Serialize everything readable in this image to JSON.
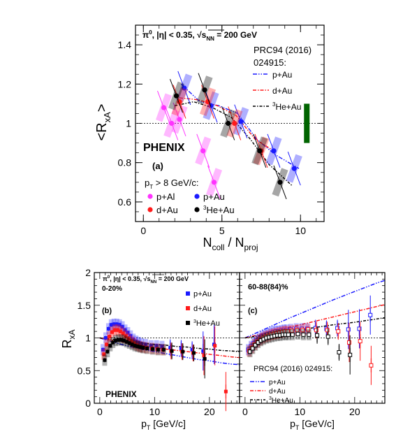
{
  "colors": {
    "pAl": "#ff33ff",
    "pAu": "#1a1aff",
    "dAu": "#ff1a1a",
    "He3Au": "#000000",
    "syst_green": "#006400"
  },
  "chart_data": [
    {
      "id": "top",
      "type": "scatter",
      "header": "π⁰, |η| < 0.35, √s_NN = 200 GeV",
      "header_parts": {
        "a": "π",
        "sup": "0",
        "b": ", |η| < 0.35, ",
        "c": "s",
        "sub": "NN",
        "d": " = 200 GeV"
      },
      "ylabel": "<R_xA>",
      "ylabel_parts": {
        "a": "<R",
        "sub": "xA",
        "b": ">"
      },
      "xlabel": "N_coll / N_proj",
      "xlabel_parts": {
        "a": "N",
        "sub1": "coll",
        "b": " / N",
        "sub2": "proj"
      },
      "xlim": [
        -0.5,
        11.5
      ],
      "ylim": [
        0.5,
        1.5
      ],
      "xticks": [
        0,
        5,
        10
      ],
      "yticks": [
        0.6,
        0.8,
        1.0,
        1.2,
        1.4
      ],
      "xtick_labels": [
        "0",
        "5",
        "10"
      ],
      "ytick_labels": [
        "0.6",
        "0.8",
        "1",
        "1.2",
        "1.4"
      ],
      "reference_line": 1.0,
      "phenix": "PHENIX",
      "panel": "(a)",
      "ref_title_1": "PRC94 (2016)",
      "ref_title_2": "024915:",
      "ref_legend": [
        {
          "name": "p+Au",
          "series": "pAu"
        },
        {
          "name": "d+Au",
          "series": "dAu"
        },
        {
          "name": "³He+Au",
          "sup": "3",
          "base": "He+Au",
          "series": "He3Au"
        }
      ],
      "cut_label_parts": {
        "a": "p",
        "sub": "T",
        "b": " > 8 GeV/c:"
      },
      "legend": [
        {
          "name": "p+Al",
          "series": "pAl"
        },
        {
          "name": "p+Au",
          "series": "pAu"
        },
        {
          "name": "d+Au",
          "series": "dAu"
        },
        {
          "name": "³He+Au",
          "sup": "3",
          "base": "He+Au",
          "series": "He3Au"
        }
      ],
      "series": [
        {
          "name": "p+Al",
          "key": "pAl",
          "x": [
            1.3,
            1.8,
            2.3,
            3.8,
            4.5
          ],
          "y": [
            1.08,
            1.0,
            1.02,
            0.86,
            0.7
          ]
        },
        {
          "name": "p+Au",
          "key": "pAu",
          "x": [
            2.6,
            4.3,
            6.2,
            8.3,
            9.6
          ],
          "y": [
            1.18,
            1.09,
            1.01,
            0.86,
            0.77
          ]
        },
        {
          "name": "d+Au",
          "key": "dAu",
          "x": [
            2.3,
            4.1,
            5.8,
            7.5
          ],
          "y": [
            1.11,
            1.11,
            1.0,
            0.86
          ]
        },
        {
          "name": "³He+Au",
          "key": "He3Au",
          "x": [
            2.1,
            3.9,
            5.4,
            7.4,
            8.7
          ],
          "y": [
            1.14,
            1.17,
            1.0,
            0.86,
            0.7
          ]
        }
      ],
      "green_box": {
        "x": 10.4,
        "y_low": 0.9,
        "y_high": 1.1
      },
      "ref_curves": [
        {
          "series": "pAu",
          "x": [
            2.4,
            3.6,
            4.8,
            6.0,
            7.2,
            8.4,
            9.9
          ],
          "y": [
            1.2,
            1.11,
            1.09,
            1.05,
            0.92,
            0.84,
            0.77
          ]
        },
        {
          "series": "dAu",
          "x": [
            2.3,
            3.5,
            4.7,
            5.9,
            7.1,
            8.3
          ],
          "y": [
            1.13,
            1.12,
            1.09,
            1.04,
            0.92,
            0.86
          ]
        },
        {
          "series": "He3Au",
          "x": [
            2.0,
            3.2,
            4.4,
            5.6,
            6.8,
            8.0,
            9.5
          ],
          "y": [
            1.09,
            1.11,
            1.08,
            1.03,
            0.92,
            0.79,
            0.68
          ]
        }
      ]
    },
    {
      "id": "bottom-left",
      "type": "scatter",
      "header_parts": {
        "a": "π",
        "sup": "0",
        "b": ", |η| < 0.35, ",
        "c": "s",
        "sub": "NN",
        "d": " = 200 GeV"
      },
      "centrality": "0-20%",
      "panel": "(b)",
      "phenix": "PHENIX",
      "ylabel_parts": {
        "a": "R",
        "sub": "xA"
      },
      "xlabel_parts": {
        "a": "p",
        "sub": "T",
        "b": " [GeV/c]"
      },
      "xlim": [
        -1,
        25.5
      ],
      "ylim": [
        0,
        2
      ],
      "xticks": [
        0,
        10,
        20
      ],
      "yticks": [
        0,
        0.5,
        1.0,
        1.5,
        2.0
      ],
      "xtick_labels": [
        "0",
        "10",
        "20"
      ],
      "ytick_labels": [
        "0",
        "0.5",
        "1",
        "1.5",
        "2"
      ],
      "reference_line": 1.0,
      "legend": [
        {
          "name": "p+Au",
          "series": "pAu",
          "marker": "square"
        },
        {
          "name": "d+Au",
          "series": "dAu",
          "marker": "square"
        },
        {
          "name": "³He+Au",
          "sup": "3",
          "base": "He+Au",
          "series": "He3Au",
          "marker": "square"
        }
      ],
      "series": [
        {
          "name": "p+Au",
          "key": "pAu",
          "x": [
            0.75,
            1.25,
            1.75,
            2.25,
            2.75,
            3.25,
            3.75,
            4.25,
            4.75,
            5.25,
            5.75,
            6.25,
            6.75,
            7.25,
            7.75,
            8.5,
            9.5,
            10.5,
            11.5,
            13,
            15,
            17,
            19,
            21
          ],
          "y": [
            0.82,
            1.0,
            1.14,
            1.2,
            1.21,
            1.21,
            1.2,
            1.17,
            1.12,
            1.08,
            1.03,
            0.98,
            0.95,
            0.93,
            0.91,
            0.9,
            0.88,
            0.88,
            0.87,
            0.85,
            0.84,
            0.82,
            0.8,
            0.9
          ]
        },
        {
          "name": "d+Au",
          "key": "dAu",
          "x": [
            0.75,
            1.25,
            1.75,
            2.25,
            2.75,
            3.25,
            3.75,
            4.25,
            4.75,
            5.25,
            5.75,
            6.25,
            6.75,
            7.25,
            7.75,
            8.5,
            9.5,
            10.5,
            11.5,
            13,
            15,
            17,
            19,
            21,
            23
          ],
          "y": [
            0.75,
            0.9,
            1.02,
            1.09,
            1.12,
            1.12,
            1.1,
            1.07,
            1.03,
            0.99,
            0.95,
            0.92,
            0.89,
            0.87,
            0.86,
            0.85,
            0.84,
            0.83,
            0.82,
            0.8,
            0.79,
            0.77,
            0.73,
            0.88,
            0.18
          ]
        },
        {
          "name": "³He+Au",
          "key": "He3Au",
          "x": [
            0.75,
            1.25,
            1.75,
            2.25,
            2.75,
            3.25,
            3.75,
            4.25,
            4.75,
            5.25,
            5.75,
            6.25,
            6.75,
            7.25,
            7.75,
            8.5,
            9.5,
            10.5,
            11.5,
            13,
            15,
            17,
            19
          ],
          "y": [
            0.66,
            0.79,
            0.88,
            0.93,
            0.96,
            0.97,
            0.97,
            0.96,
            0.94,
            0.92,
            0.9,
            0.88,
            0.87,
            0.86,
            0.85,
            0.84,
            0.83,
            0.82,
            0.82,
            0.8,
            0.79,
            0.77,
            0.68
          ]
        }
      ],
      "ref_curves": [
        {
          "series": "pAu",
          "x": [
            0,
            2,
            4,
            6,
            8,
            10,
            12,
            14,
            16,
            18,
            20,
            22,
            24,
            25.5
          ],
          "y": [
            1.0,
            0.95,
            0.9,
            0.86,
            0.82,
            0.79,
            0.76,
            0.73,
            0.7,
            0.67,
            0.65,
            0.62,
            0.6,
            0.59
          ]
        },
        {
          "series": "dAu",
          "x": [
            0,
            2,
            4,
            6,
            8,
            10,
            12,
            14,
            16,
            18,
            20,
            22,
            24,
            25.5
          ],
          "y": [
            1.0,
            0.97,
            0.94,
            0.91,
            0.88,
            0.85,
            0.83,
            0.81,
            0.79,
            0.77,
            0.75,
            0.73,
            0.71,
            0.7
          ]
        },
        {
          "series": "He3Au",
          "x": [
            0,
            2,
            4,
            6,
            8,
            10,
            12,
            14,
            16,
            18,
            20,
            22,
            24,
            25.5
          ],
          "y": [
            1.0,
            0.98,
            0.96,
            0.94,
            0.92,
            0.9,
            0.89,
            0.87,
            0.86,
            0.84,
            0.83,
            0.81,
            0.8,
            0.79
          ]
        }
      ]
    },
    {
      "id": "bottom-right",
      "type": "scatter",
      "centrality": "60-88(84)%",
      "panel": "(c)",
      "xlabel_parts": {
        "a": "p",
        "sub": "T",
        "b": " [GeV/c]"
      },
      "xlim": [
        -1,
        25.5
      ],
      "ylim": [
        0,
        2
      ],
      "xticks": [
        0,
        10,
        20
      ],
      "xtick_labels": [
        "0",
        "10",
        "20"
      ],
      "reference_line": 1.0,
      "ref_title": "PRC94 (2016) 024915:",
      "ref_legend": [
        {
          "name": "p+Au",
          "series": "pAu"
        },
        {
          "name": "d+Au",
          "series": "dAu"
        },
        {
          "name": "³He+Au",
          "sup": "3",
          "base": "He+Au",
          "series": "He3Au"
        }
      ],
      "series": [
        {
          "name": "p+Au",
          "key": "pAu",
          "x": [
            0.75,
            1.25,
            1.75,
            2.25,
            2.75,
            3.25,
            3.75,
            4.25,
            4.75,
            5.25,
            5.75,
            6.25,
            6.75,
            7.25,
            7.75,
            8.5,
            9.5,
            10.5,
            11.5,
            13,
            15,
            17,
            19,
            21,
            23
          ],
          "y": [
            0.82,
            0.87,
            0.92,
            0.96,
            0.99,
            1.02,
            1.04,
            1.06,
            1.07,
            1.09,
            1.1,
            1.1,
            1.11,
            1.12,
            1.12,
            1.13,
            1.14,
            1.14,
            1.14,
            1.15,
            1.14,
            1.15,
            1.13,
            1.14,
            1.35
          ]
        },
        {
          "name": "d+Au",
          "key": "dAu",
          "x": [
            0.75,
            1.25,
            1.75,
            2.25,
            2.75,
            3.25,
            3.75,
            4.25,
            4.75,
            5.25,
            5.75,
            6.25,
            6.75,
            7.25,
            7.75,
            8.5,
            9.5,
            10.5,
            11.5,
            13,
            15,
            17,
            19,
            21,
            23
          ],
          "y": [
            0.8,
            0.85,
            0.9,
            0.94,
            0.97,
            1.0,
            1.02,
            1.03,
            1.05,
            1.06,
            1.07,
            1.08,
            1.09,
            1.1,
            1.1,
            1.11,
            1.12,
            1.12,
            1.13,
            1.12,
            1.12,
            1.1,
            0.93,
            0.95,
            0.58
          ]
        },
        {
          "name": "³He+Au",
          "key": "He3Au",
          "x": [
            0.75,
            1.25,
            1.75,
            2.25,
            2.75,
            3.25,
            3.75,
            4.25,
            4.75,
            5.25,
            5.75,
            6.25,
            6.75,
            7.25,
            7.75,
            8.5,
            9.5,
            10.5,
            11.5,
            13,
            15,
            17,
            19
          ],
          "y": [
            0.79,
            0.84,
            0.89,
            0.93,
            0.96,
            0.98,
            1.0,
            1.01,
            1.02,
            1.03,
            1.04,
            1.04,
            1.05,
            1.05,
            1.05,
            1.05,
            1.06,
            1.05,
            1.05,
            1.04,
            1.02,
            0.78,
            0.74
          ]
        }
      ],
      "ref_curves": [
        {
          "series": "pAu",
          "x": [
            0,
            4,
            8,
            12,
            16,
            20,
            24,
            25.5
          ],
          "y": [
            1.0,
            1.15,
            1.3,
            1.44,
            1.58,
            1.71,
            1.84,
            1.88
          ]
        },
        {
          "series": "dAu",
          "x": [
            0,
            4,
            8,
            12,
            16,
            20,
            24,
            25.5
          ],
          "y": [
            1.0,
            1.08,
            1.16,
            1.24,
            1.32,
            1.4,
            1.48,
            1.51
          ]
        },
        {
          "series": "He3Au",
          "x": [
            0,
            4,
            8,
            12,
            16,
            20,
            24,
            25.5
          ],
          "y": [
            1.0,
            1.05,
            1.1,
            1.15,
            1.2,
            1.24,
            1.29,
            1.31
          ]
        }
      ]
    }
  ]
}
